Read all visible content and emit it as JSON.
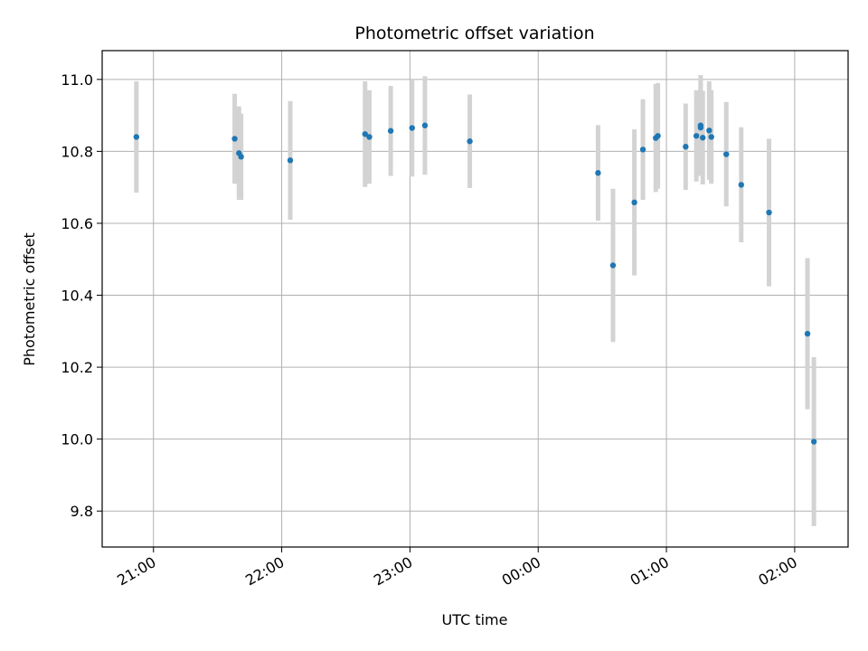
{
  "chart_data": {
    "type": "scatter",
    "title": "Photometric offset variation",
    "xlabel": "UTC time",
    "ylabel": "Photometric offset",
    "x_unit": "UTC time (hours, spanning midnight)",
    "xlim": [
      "20:36",
      "02:25"
    ],
    "ylim": [
      9.7,
      11.08
    ],
    "grid": true,
    "colors": {
      "point": "#1f77b4",
      "errorbar": "#d3d3d3",
      "grid": "#b0b0b0"
    },
    "x_ticks": [
      {
        "t": "21:00",
        "label": "21:00"
      },
      {
        "t": "22:00",
        "label": "22:00"
      },
      {
        "t": "23:00",
        "label": "23:00"
      },
      {
        "t": "00:00",
        "label": "00:00"
      },
      {
        "t": "01:00",
        "label": "01:00"
      },
      {
        "t": "02:00",
        "label": "02:00"
      }
    ],
    "y_ticks": [
      {
        "v": 9.8,
        "label": "9.8"
      },
      {
        "v": 10.0,
        "label": "10.0"
      },
      {
        "v": 10.2,
        "label": "10.2"
      },
      {
        "v": 10.4,
        "label": "10.4"
      },
      {
        "v": 10.6,
        "label": "10.6"
      },
      {
        "v": 10.8,
        "label": "10.8"
      },
      {
        "v": 11.0,
        "label": "11.0"
      }
    ],
    "points": [
      {
        "t": "20:52",
        "y": 10.84,
        "err": 0.155
      },
      {
        "t": "21:38",
        "y": 10.835,
        "err": 0.125
      },
      {
        "t": "21:40",
        "y": 10.795,
        "err": 0.13
      },
      {
        "t": "21:41",
        "y": 10.785,
        "err": 0.12
      },
      {
        "t": "22:04",
        "y": 10.775,
        "err": 0.165
      },
      {
        "t": "22:39",
        "y": 10.848,
        "err": 0.147
      },
      {
        "t": "22:41",
        "y": 10.84,
        "err": 0.13
      },
      {
        "t": "22:51",
        "y": 10.857,
        "err": 0.125
      },
      {
        "t": "23:01",
        "y": 10.865,
        "err": 0.135
      },
      {
        "t": "23:07",
        "y": 10.872,
        "err": 0.137
      },
      {
        "t": "23:28",
        "y": 10.828,
        "err": 0.13
      },
      {
        "t": "00:28",
        "y": 10.74,
        "err": 0.133
      },
      {
        "t": "00:35",
        "y": 10.483,
        "err": 0.213
      },
      {
        "t": "00:45",
        "y": 10.658,
        "err": 0.203
      },
      {
        "t": "00:49",
        "y": 10.805,
        "err": 0.14
      },
      {
        "t": "00:55",
        "y": 10.837,
        "err": 0.15
      },
      {
        "t": "00:56",
        "y": 10.843,
        "err": 0.147
      },
      {
        "t": "01:09",
        "y": 10.813,
        "err": 0.12
      },
      {
        "t": "01:14",
        "y": 10.843,
        "err": 0.127
      },
      {
        "t": "01:16",
        "y": 10.872,
        "err": 0.14
      },
      {
        "t": "01:16",
        "y": 10.866,
        "err": 0.127
      },
      {
        "t": "01:17",
        "y": 10.838,
        "err": 0.13
      },
      {
        "t": "01:20",
        "y": 10.858,
        "err": 0.137
      },
      {
        "t": "01:21",
        "y": 10.84,
        "err": 0.13
      },
      {
        "t": "01:28",
        "y": 10.792,
        "err": 0.145
      },
      {
        "t": "01:35",
        "y": 10.707,
        "err": 0.16
      },
      {
        "t": "01:48",
        "y": 10.63,
        "err": 0.205
      },
      {
        "t": "02:06",
        "y": 10.293,
        "err": 0.21
      },
      {
        "t": "02:09",
        "y": 9.993,
        "err": 0.235
      }
    ]
  }
}
